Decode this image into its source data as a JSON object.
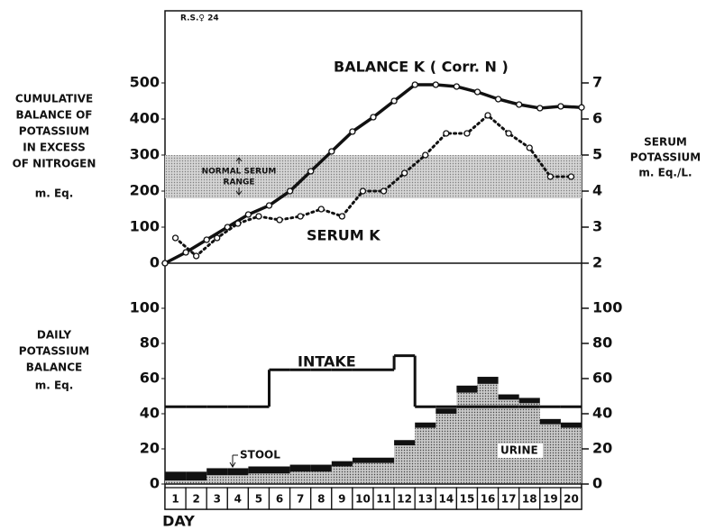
{
  "chart_data": [
    {
      "type": "line",
      "figure_label": "R.S.♀ 24",
      "ylabel": [
        "CUMULATIVE",
        "BALANCE OF",
        "POTASSIUM",
        "IN EXCESS",
        "OF NITROGEN"
      ],
      "ylabel_unit": "m. Eq.",
      "y2label": [
        "SERUM",
        "POTASSIUM"
      ],
      "y2label_unit": "m. Eq./L.",
      "annotations": {
        "balance": "BALANCE K ( Corr. N )",
        "serum": "SERUM K",
        "normal_range": [
          "NORMAL SERUM",
          "RANGE"
        ]
      },
      "normal_range": [
        3.8,
        5.0
      ],
      "normal_range_color": "#d4d4d4",
      "xlim": [
        0.5,
        20.5
      ],
      "ylim": [
        0,
        700
      ],
      "yticks": [
        0,
        100,
        200,
        300,
        400,
        500
      ],
      "y2lim": [
        2,
        9
      ],
      "y2ticks": [
        2,
        3,
        4,
        5,
        6,
        7
      ],
      "series": [
        {
          "name": "BALANCE K",
          "color": "#111111",
          "axis": "y",
          "x": [
            0.5,
            1.5,
            2.5,
            3.5,
            4.5,
            5.5,
            6.5,
            7.5,
            8.5,
            9.5,
            10.5,
            11.5,
            12.5,
            13.5,
            14.5,
            15.5,
            16.5,
            17.5,
            18.5,
            19.5,
            20.5
          ],
          "values": [
            0,
            30,
            65,
            100,
            135,
            160,
            200,
            255,
            310,
            365,
            405,
            450,
            495,
            495,
            490,
            475,
            455,
            440,
            430,
            435,
            432
          ]
        },
        {
          "name": "SERUM K",
          "color": "#111111",
          "axis": "y2",
          "x": [
            1,
            2,
            3,
            4,
            5,
            6,
            7,
            8,
            9,
            10,
            11,
            12,
            13,
            14,
            15,
            16,
            17,
            18,
            19,
            20
          ],
          "values": [
            2.7,
            2.2,
            2.7,
            3.1,
            3.3,
            3.2,
            3.3,
            3.5,
            3.3,
            4.0,
            4.0,
            4.5,
            5.0,
            5.6,
            5.6,
            6.1,
            5.6,
            5.2,
            4.4,
            4.4
          ]
        }
      ]
    },
    {
      "type": "bar",
      "ylabel": [
        "DAILY",
        "POTASSIUM",
        "BALANCE"
      ],
      "ylabel_unit": "m. Eq.",
      "xlabel": "DAY",
      "annotations": {
        "intake": "INTAKE",
        "stool": "STOOL",
        "urine": "URINE"
      },
      "categories": [
        "1",
        "2",
        "3",
        "4",
        "5",
        "6",
        "7",
        "8",
        "9",
        "10",
        "11",
        "12",
        "13",
        "14",
        "15",
        "16",
        "17",
        "18",
        "19",
        "20"
      ],
      "ylim": [
        0,
        120
      ],
      "yticks": [
        0,
        20,
        40,
        60,
        80,
        100
      ],
      "y2ticks": [
        0,
        20,
        40,
        60,
        80,
        100
      ],
      "series": [
        {
          "name": "URINE",
          "color": "#c8c8c8",
          "stack": true,
          "values": [
            2,
            2,
            5,
            5,
            6,
            6,
            7,
            7,
            10,
            12,
            12,
            22,
            32,
            40,
            52,
            57,
            48,
            46,
            34,
            32
          ]
        },
        {
          "name": "STOOL",
          "color": "#111111",
          "stack": true,
          "values": [
            5,
            5,
            4,
            4,
            4,
            4,
            4,
            4,
            3,
            3,
            3,
            3,
            3,
            3,
            4,
            4,
            3,
            3,
            3,
            3
          ]
        },
        {
          "name": "INTAKE",
          "color": "#111111",
          "stack": false,
          "values": [
            44,
            44,
            44,
            44,
            44,
            65,
            65,
            65,
            65,
            65,
            65,
            73,
            44,
            44,
            44,
            44,
            44,
            44,
            44,
            44
          ]
        }
      ]
    }
  ]
}
